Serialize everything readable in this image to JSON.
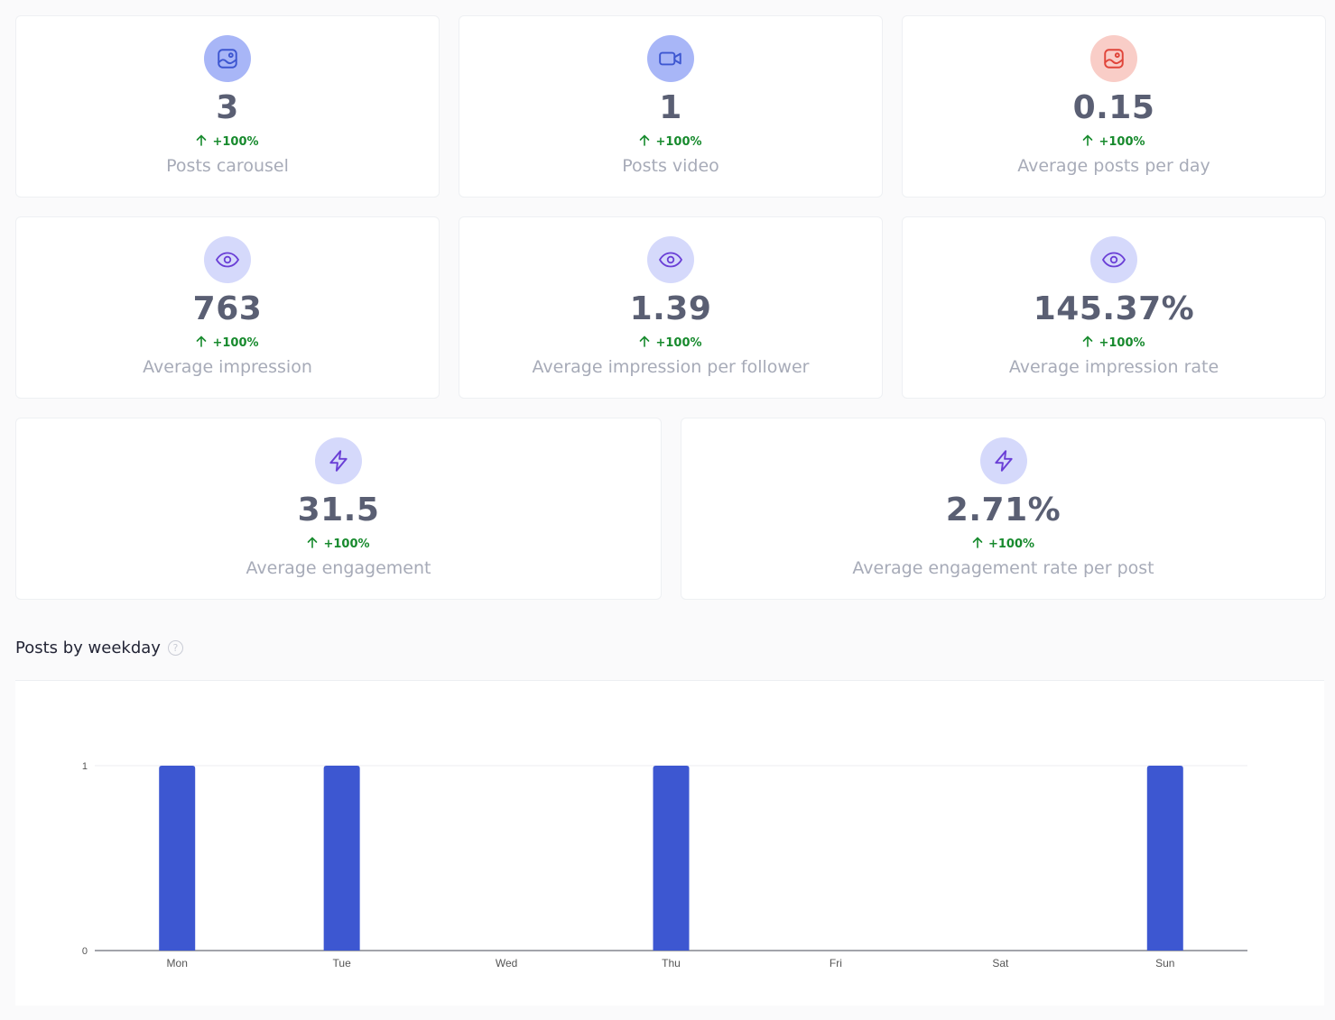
{
  "metrics": [
    {
      "icon": "image-icon",
      "color": "blue",
      "value": "3",
      "change": "+100%",
      "label": "Posts carousel"
    },
    {
      "icon": "video-camera-icon",
      "color": "blue",
      "value": "1",
      "change": "+100%",
      "label": "Posts video"
    },
    {
      "icon": "image-icon",
      "color": "red",
      "value": "0.15",
      "change": "+100%",
      "label": "Average posts per day"
    },
    {
      "icon": "eye-icon",
      "color": "lavender",
      "value": "763",
      "change": "+100%",
      "label": "Average impression"
    },
    {
      "icon": "eye-icon",
      "color": "lavender",
      "value": "1.39",
      "change": "+100%",
      "label": "Average impression per follower"
    },
    {
      "icon": "eye-icon",
      "color": "lavender",
      "value": "145.37%",
      "change": "+100%",
      "label": "Average impression rate"
    },
    {
      "icon": "lightning-icon",
      "color": "lavender",
      "value": "31.5",
      "change": "+100%",
      "label": "Average engagement"
    },
    {
      "icon": "lightning-icon",
      "color": "lavender",
      "value": "2.71%",
      "change": "+100%",
      "label": "Average engagement rate per post"
    }
  ],
  "section": {
    "title": "Posts by weekday",
    "help_icon": "question-circle-icon"
  },
  "colors": {
    "bar": "#3d57d1",
    "positive_change": "#178a2d",
    "value_text": "#5a5f73",
    "label_text": "#a7abb8"
  },
  "chart_data": {
    "type": "bar",
    "categories": [
      "Mon",
      "Tue",
      "Wed",
      "Thu",
      "Fri",
      "Sat",
      "Sun"
    ],
    "values": [
      1,
      1,
      0,
      1,
      0,
      0,
      1
    ],
    "title": "Posts by weekday",
    "xlabel": "",
    "ylabel": "",
    "ylim": [
      0,
      1
    ],
    "yticks": [
      0,
      1
    ],
    "grid": true,
    "legend": "none"
  }
}
